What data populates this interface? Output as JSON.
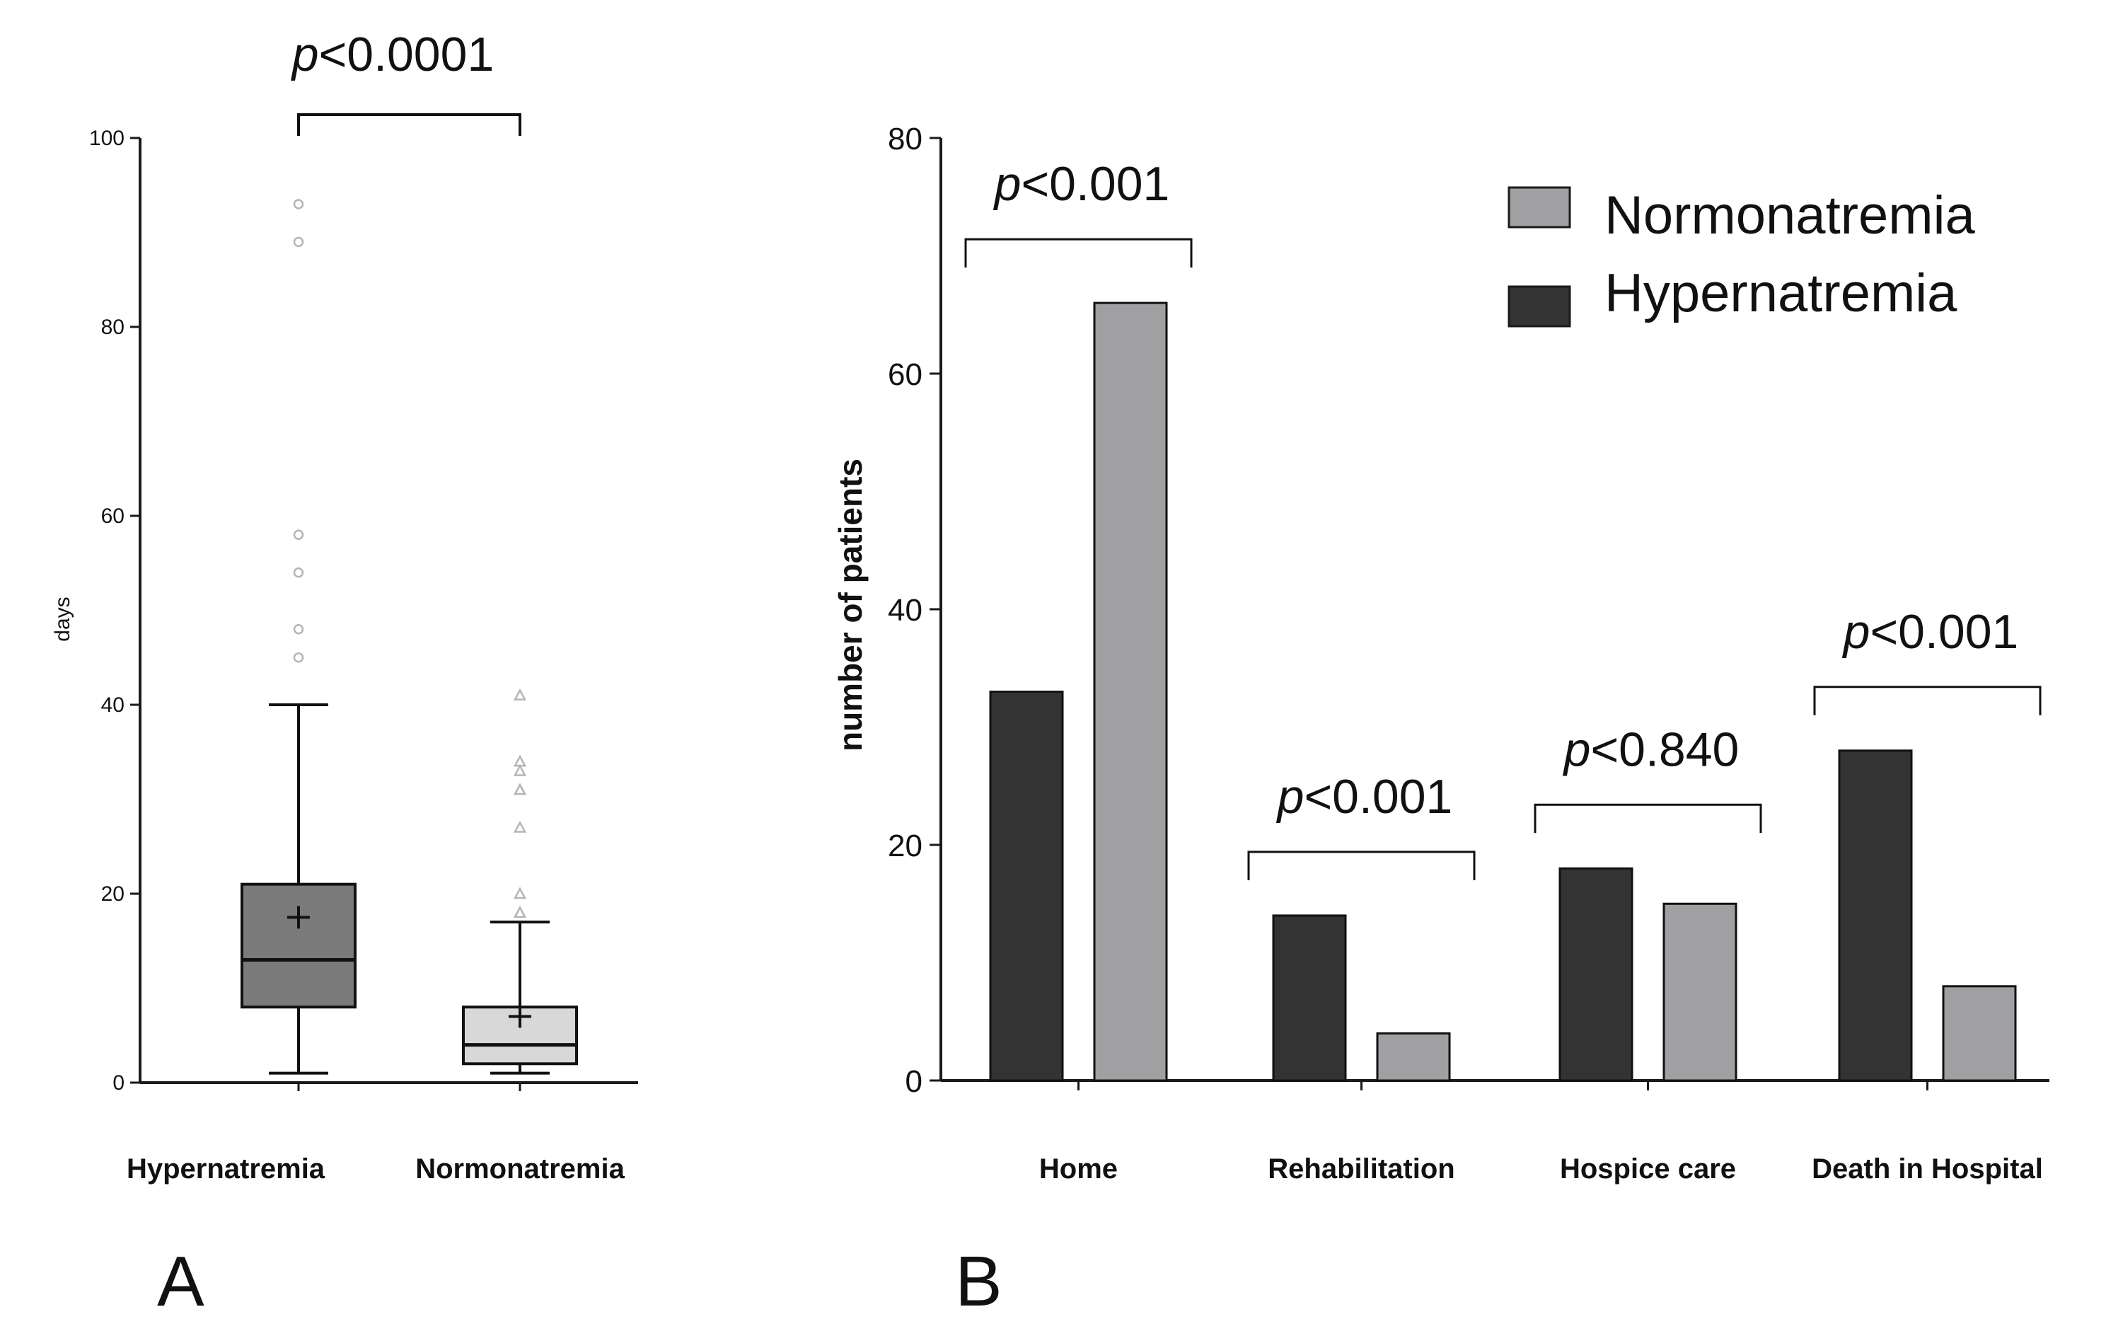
{
  "colors": {
    "hyper_box": "#7a7a7a",
    "normo_box": "#d8d8d8",
    "hyper_bar": "#333333",
    "normo_bar": "#a0a0a2",
    "outlier": "#b5b5b5",
    "axis": "#1a1a1a"
  },
  "chart_data": [
    {
      "type": "box",
      "panel_label": "A",
      "ylabel": "days",
      "ylim": [
        0,
        100
      ],
      "yticks": [
        "0",
        "20",
        "40",
        "60",
        "80",
        "100"
      ],
      "categories": [
        "Hypernatremia",
        "Normonatremia"
      ],
      "boxes": [
        {
          "name": "Hypernatremia",
          "min": 1,
          "q1": 8,
          "median": 13,
          "q3": 21,
          "max": 40,
          "mean": 17.5,
          "outliers": [
            45,
            48,
            54,
            58,
            89,
            93
          ],
          "outlier_marker": "circle"
        },
        {
          "name": "Normonatremia",
          "min": 1,
          "q1": 2,
          "median": 4,
          "q3": 8,
          "max": 17,
          "mean": 7,
          "outliers": [
            18,
            18,
            20,
            27,
            31,
            31,
            33,
            34,
            41
          ],
          "outlier_marker": "triangle"
        }
      ],
      "annotation": {
        "between": [
          "Hypernatremia",
          "Normonatremia"
        ],
        "p_symbol": "p",
        "p_rest": "<0.0001"
      }
    },
    {
      "type": "bar",
      "panel_label": "B",
      "ylabel": "number of patients",
      "ylim": [
        0,
        80
      ],
      "yticks": [
        "0",
        "20",
        "40",
        "60",
        "80"
      ],
      "categories": [
        "Home",
        "Rehabilitation",
        "Hospice care",
        "Death in Hospital"
      ],
      "series": [
        {
          "name": "Hypernatremia",
          "values": [
            33,
            14,
            18,
            28
          ]
        },
        {
          "name": "Normonatremia",
          "values": [
            66,
            4,
            15,
            8
          ]
        }
      ],
      "legend": {
        "position": "top-right",
        "entries": [
          "Normonatremia",
          "Hypernatremia"
        ]
      },
      "annotations": [
        {
          "category": "Home",
          "p_symbol": "p",
          "p_rest": "<0.001"
        },
        {
          "category": "Rehabilitation",
          "p_symbol": "p",
          "p_rest": "<0.001"
        },
        {
          "category": "Hospice care",
          "p_symbol": "p",
          "p_rest": "<0.840"
        },
        {
          "category": "Death in Hospital",
          "p_symbol": "p",
          "p_rest": "<0.001"
        }
      ]
    }
  ]
}
